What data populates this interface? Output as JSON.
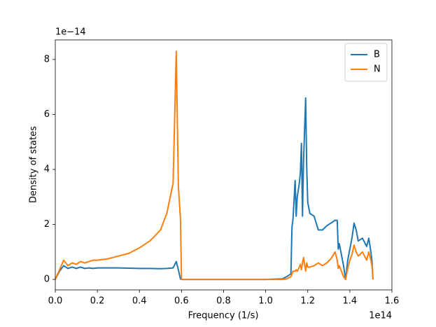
{
  "chart_data": {
    "type": "line",
    "x_label": "Frequency (1/s)",
    "y_label": "Density of states",
    "x_offset_label": "1e14",
    "y_offset_label": "1e−14",
    "x": [
      0,
      0.02,
      0.04,
      0.06,
      0.08,
      0.1,
      0.12,
      0.14,
      0.16,
      0.18,
      0.2,
      0.25,
      0.3,
      0.35,
      0.4,
      0.45,
      0.5,
      0.53,
      0.56,
      0.575,
      0.585,
      0.595,
      0.6,
      0.7,
      0.8,
      0.9,
      1.0,
      1.08,
      1.1,
      1.12,
      1.125,
      1.13,
      1.14,
      1.145,
      1.15,
      1.16,
      1.165,
      1.17,
      1.175,
      1.18,
      1.19,
      1.195,
      1.2,
      1.21,
      1.23,
      1.25,
      1.27,
      1.29,
      1.31,
      1.33,
      1.34,
      1.345,
      1.35,
      1.37,
      1.38,
      1.39,
      1.4,
      1.41,
      1.42,
      1.43,
      1.44,
      1.46,
      1.48,
      1.49,
      1.5,
      1.505,
      1.51
    ],
    "series": [
      {
        "name": "B",
        "color": "#1f77b4",
        "values": [
          0,
          0.3,
          0.5,
          0.4,
          0.45,
          0.4,
          0.45,
          0.4,
          0.42,
          0.4,
          0.42,
          0.42,
          0.42,
          0.41,
          0.4,
          0.4,
          0.39,
          0.4,
          0.42,
          0.65,
          0.35,
          0.02,
          0,
          0,
          0,
          0,
          0,
          0.02,
          0.1,
          0.2,
          1.9,
          2.2,
          3.6,
          2.3,
          3.0,
          3.5,
          3.9,
          4.95,
          2.3,
          4.3,
          6.6,
          4.1,
          2.8,
          2.4,
          2.3,
          1.8,
          1.8,
          1.95,
          2.05,
          2.15,
          2.15,
          1.1,
          1.3,
          0.5,
          0,
          0.7,
          1.1,
          1.5,
          2.05,
          1.8,
          1.4,
          1.5,
          1.2,
          1.5,
          1.0,
          0.7,
          0
        ]
      },
      {
        "name": "N",
        "color": "#ff7f0e",
        "values": [
          0,
          0.35,
          0.7,
          0.5,
          0.6,
          0.55,
          0.65,
          0.6,
          0.65,
          0.7,
          0.7,
          0.75,
          0.85,
          0.95,
          1.15,
          1.4,
          1.8,
          2.4,
          3.5,
          8.3,
          3.4,
          2.2,
          0,
          0,
          0,
          0,
          0,
          0,
          0.02,
          0.1,
          0.2,
          0.3,
          0.3,
          0.35,
          0.3,
          0.45,
          0.55,
          0.35,
          0.6,
          0.8,
          0.3,
          0.6,
          0.45,
          0.45,
          0.5,
          0.6,
          0.5,
          0.6,
          0.75,
          1.0,
          0.7,
          0.4,
          0.5,
          0.1,
          0,
          0.4,
          0.7,
          0.9,
          1.25,
          1.0,
          0.85,
          1.0,
          0.7,
          1.0,
          0.7,
          0.5,
          0
        ]
      }
    ],
    "xlim": [
      0,
      1.6
    ],
    "ylim": [
      -0.38,
      8.71
    ],
    "xticks": [
      {
        "value": 0,
        "label": "0.0"
      },
      0.2,
      0.4,
      0.6,
      0.8,
      {
        "value": 1,
        "label": "1.0"
      },
      1.2,
      1.4,
      1.6
    ],
    "yticks": [
      0,
      2,
      4,
      6,
      8
    ],
    "legend": "upper right"
  }
}
